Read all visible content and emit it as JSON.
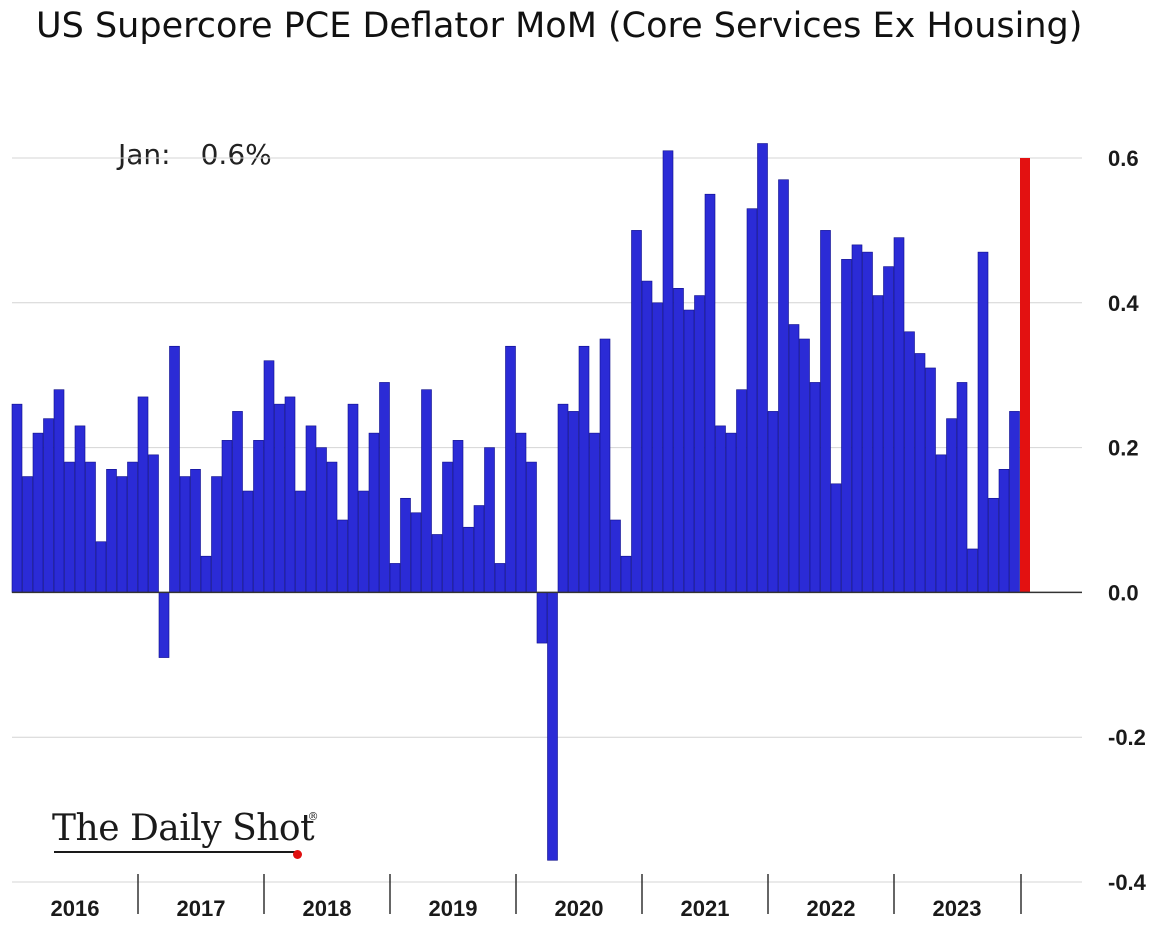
{
  "chart_data": {
    "type": "bar",
    "title": "US Supercore PCE Deflator MoM (Core Services Ex Housing)",
    "annotation": {
      "label": "Jan:",
      "value": "0.6%"
    },
    "ylim": [
      -0.4,
      0.6
    ],
    "yticks": [
      "0.6",
      "0.4",
      "0.2",
      "0.0",
      "-0.2",
      "-0.4"
    ],
    "ytick_values": [
      0.6,
      0.4,
      0.2,
      0.0,
      -0.2,
      -0.4
    ],
    "grid": true,
    "year_labels": [
      "2016",
      "2017",
      "2018",
      "2019",
      "2020",
      "2021",
      "2022",
      "2023"
    ],
    "colors": {
      "bar": "#2b2bd6",
      "highlight": "#e31111",
      "grid": "#d4d4d4",
      "axis": "#333333"
    },
    "series": [
      {
        "values": [
          0.26,
          0.16,
          0.22,
          0.24,
          0.28,
          0.18,
          0.23,
          0.18,
          0.07,
          0.17,
          0.16,
          0.18,
          0.27,
          0.19,
          -0.09,
          0.34,
          0.16,
          0.17,
          0.05,
          0.16,
          0.21,
          0.25,
          0.14,
          0.21,
          0.32,
          0.26,
          0.27,
          0.14,
          0.23,
          0.2,
          0.18,
          0.1,
          0.26,
          0.14,
          0.22,
          0.29,
          0.04,
          0.13,
          0.11,
          0.28,
          0.08,
          0.18,
          0.21,
          0.09,
          0.12,
          0.2,
          0.04,
          0.34,
          0.22,
          0.18,
          -0.07,
          -0.37,
          0.26,
          0.25,
          0.34,
          0.22,
          0.35,
          0.1,
          0.05,
          0.5,
          0.43,
          0.4,
          0.61,
          0.42,
          0.39,
          0.41,
          0.55,
          0.23,
          0.22,
          0.28,
          0.53,
          0.62,
          0.25,
          0.57,
          0.37,
          0.35,
          0.29,
          0.5,
          0.15,
          0.46,
          0.48,
          0.47,
          0.41,
          0.45,
          0.49,
          0.36,
          0.33,
          0.31,
          0.19,
          0.24,
          0.29,
          0.06,
          0.47,
          0.13,
          0.17,
          0.25,
          0.6
        ]
      }
    ]
  },
  "watermark": "The Daily Shot"
}
